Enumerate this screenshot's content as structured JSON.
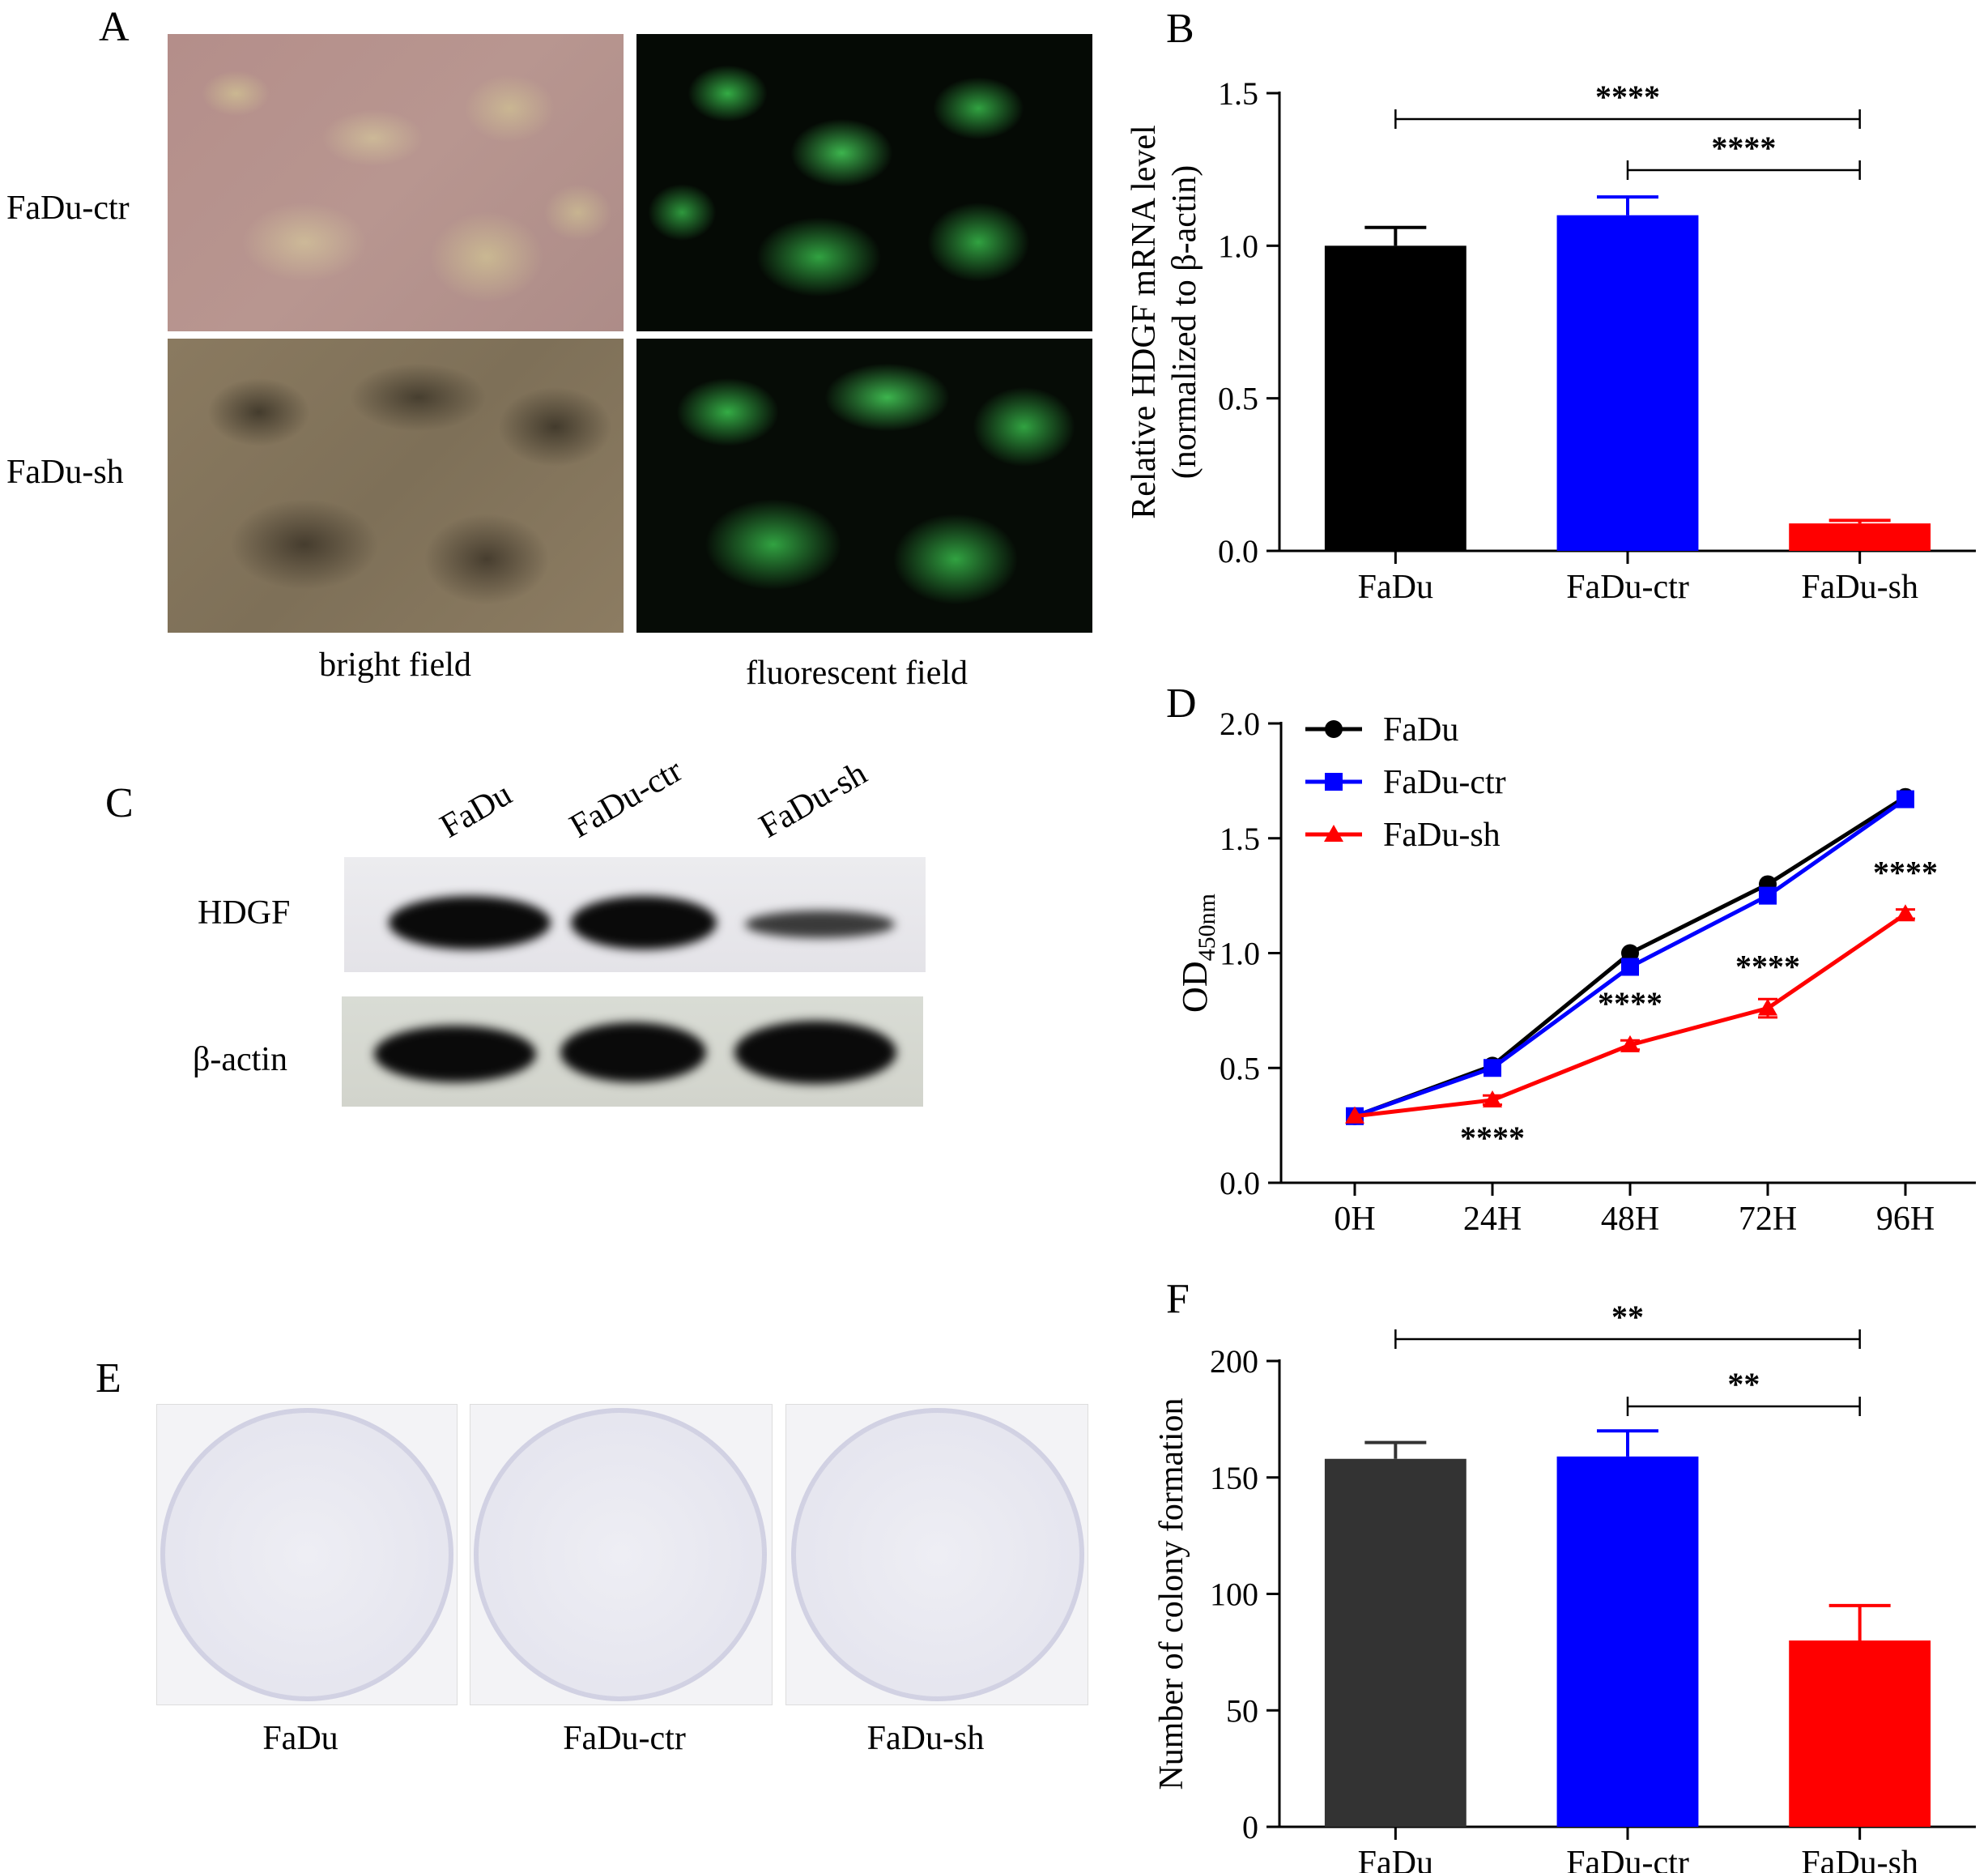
{
  "panels": {
    "A": {
      "letter": "A",
      "row_labels": [
        "FaDu-ctr",
        "FaDu-sh"
      ],
      "col_labels": [
        "bright field",
        "fluorescent field"
      ]
    },
    "C": {
      "letter": "C",
      "lane_labels": [
        "FaDu",
        "FaDu-ctr",
        "FaDu-sh"
      ],
      "row_labels": [
        "HDGF",
        "β-actin"
      ]
    },
    "E": {
      "letter": "E",
      "plate_labels": [
        "FaDu",
        "FaDu-ctr",
        "FaDu-sh"
      ]
    }
  },
  "colors": {
    "fadu": "#000000",
    "fadu_ctr": "#0000ff",
    "fadu_sh": "#ff0000",
    "fadu_dark": "#333333"
  },
  "chart_data": [
    {
      "panel": "B",
      "type": "bar",
      "categories": [
        "FaDu",
        "FaDu-ctr",
        "FaDu-sh"
      ],
      "values": [
        1.0,
        1.1,
        0.09
      ],
      "errors": [
        0.06,
        0.06,
        0.01
      ],
      "ylabel_line1": "Relative HDGF mRNA level",
      "ylabel_line2": "(normalized to β-actin)",
      "ylim": [
        0,
        1.5
      ],
      "yticks": [
        "0.0",
        "0.5",
        "1.0",
        "1.5"
      ],
      "significance": [
        {
          "from": 0,
          "to": 2,
          "label": "****"
        },
        {
          "from": 1,
          "to": 2,
          "label": "****"
        }
      ]
    },
    {
      "panel": "D",
      "type": "line",
      "x": [
        "0H",
        "24H",
        "48H",
        "72H",
        "96H"
      ],
      "ylabel_main": "OD",
      "ylabel_sub": "450nm",
      "ylim": [
        0,
        2.0
      ],
      "yticks": [
        "0.0",
        "0.5",
        "1.0",
        "1.5",
        "2.0"
      ],
      "legend_position": "top-left",
      "series": [
        {
          "name": "FaDu",
          "values": [
            0.29,
            0.51,
            1.0,
            1.3,
            1.68
          ],
          "marker": "circle"
        },
        {
          "name": "FaDu-ctr",
          "values": [
            0.29,
            0.5,
            0.94,
            1.25,
            1.67
          ],
          "marker": "square"
        },
        {
          "name": "FaDu-sh",
          "values": [
            0.29,
            0.36,
            0.6,
            0.76,
            1.17
          ],
          "errors": [
            0,
            0.02,
            0.02,
            0.04,
            0.02
          ],
          "marker": "triangle"
        }
      ],
      "annotations": [
        {
          "x_index": 1,
          "label": "****",
          "position": "below"
        },
        {
          "x_index": 2,
          "label": "****",
          "position": "above"
        },
        {
          "x_index": 3,
          "label": "****",
          "position": "above"
        },
        {
          "x_index": 4,
          "label": "****",
          "position": "above"
        }
      ]
    },
    {
      "panel": "F",
      "type": "bar",
      "categories": [
        "FaDu",
        "FaDu-ctr",
        "FaDu-sh"
      ],
      "values": [
        158,
        159,
        80
      ],
      "errors": [
        7,
        11,
        15
      ],
      "ylabel": "Number of colony formation",
      "ylim": [
        0,
        200
      ],
      "yticks": [
        "0",
        "50",
        "100",
        "150",
        "200"
      ],
      "significance": [
        {
          "from": 0,
          "to": 2,
          "label": "**"
        },
        {
          "from": 1,
          "to": 2,
          "label": "**"
        }
      ]
    }
  ]
}
